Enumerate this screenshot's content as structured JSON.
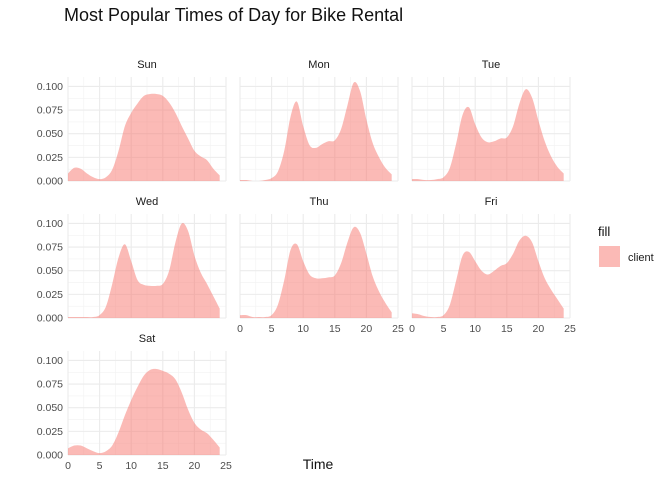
{
  "chart_data": {
    "type": "area",
    "title": "Most Popular Times of Day for Bike Rental",
    "xlabel": "Time",
    "ylabel": "",
    "xlim": [
      0,
      25
    ],
    "ylim": [
      0,
      0.11
    ],
    "x_ticks": [
      "0",
      "5",
      "10",
      "15",
      "20",
      "25"
    ],
    "y_ticks": [
      "0.000",
      "0.025",
      "0.050",
      "0.075",
      "0.100"
    ],
    "grid": true,
    "legend": {
      "title": "fill",
      "position": "right",
      "entries": [
        "client"
      ]
    },
    "fill_color": "#F8766D",
    "fill_opacity": 0.5,
    "panels": [
      {
        "label": "Sun",
        "x": [
          0,
          1,
          2,
          3,
          4,
          5,
          6,
          7,
          8,
          9,
          10,
          11,
          12,
          13,
          14,
          15,
          16,
          17,
          18,
          19,
          20,
          21,
          22,
          23,
          24
        ],
        "values": [
          0.008,
          0.014,
          0.013,
          0.008,
          0.004,
          0.002,
          0.004,
          0.012,
          0.032,
          0.058,
          0.072,
          0.082,
          0.09,
          0.092,
          0.092,
          0.09,
          0.083,
          0.072,
          0.058,
          0.045,
          0.032,
          0.026,
          0.022,
          0.013,
          0.006
        ]
      },
      {
        "label": "Mon",
        "x": [
          0,
          1,
          2,
          3,
          4,
          5,
          6,
          7,
          8,
          9,
          10,
          11,
          12,
          13,
          14,
          15,
          16,
          17,
          18,
          19,
          20,
          21,
          22,
          23,
          24
        ],
        "values": [
          0.001,
          0.001,
          0.0,
          0.0,
          0.001,
          0.003,
          0.01,
          0.032,
          0.068,
          0.084,
          0.058,
          0.038,
          0.035,
          0.039,
          0.042,
          0.043,
          0.055,
          0.08,
          0.104,
          0.095,
          0.065,
          0.04,
          0.025,
          0.014,
          0.007
        ]
      },
      {
        "label": "Tue",
        "x": [
          0,
          1,
          2,
          3,
          4,
          5,
          6,
          7,
          8,
          9,
          10,
          11,
          12,
          13,
          14,
          15,
          16,
          17,
          18,
          19,
          20,
          21,
          22,
          23,
          24
        ],
        "values": [
          0.002,
          0.002,
          0.001,
          0.001,
          0.002,
          0.004,
          0.014,
          0.04,
          0.07,
          0.078,
          0.06,
          0.046,
          0.041,
          0.042,
          0.045,
          0.046,
          0.058,
          0.082,
          0.097,
          0.088,
          0.064,
          0.042,
          0.026,
          0.015,
          0.008
        ]
      },
      {
        "label": "Wed",
        "x": [
          0,
          1,
          2,
          3,
          4,
          5,
          6,
          7,
          8,
          9,
          10,
          11,
          12,
          13,
          14,
          15,
          16,
          17,
          18,
          19,
          20,
          21,
          22,
          23,
          24
        ],
        "values": [
          0.001,
          0.001,
          0.001,
          0.001,
          0.001,
          0.003,
          0.012,
          0.036,
          0.064,
          0.078,
          0.06,
          0.04,
          0.035,
          0.034,
          0.034,
          0.036,
          0.05,
          0.08,
          0.1,
          0.092,
          0.066,
          0.048,
          0.036,
          0.023,
          0.01
        ]
      },
      {
        "label": "Thu",
        "x": [
          0,
          1,
          2,
          3,
          4,
          5,
          6,
          7,
          8,
          9,
          10,
          11,
          12,
          13,
          14,
          15,
          16,
          17,
          18,
          19,
          20,
          21,
          22,
          23,
          24
        ],
        "values": [
          0.003,
          0.003,
          0.001,
          0.001,
          0.001,
          0.003,
          0.014,
          0.04,
          0.072,
          0.078,
          0.06,
          0.046,
          0.042,
          0.042,
          0.043,
          0.045,
          0.058,
          0.08,
          0.096,
          0.09,
          0.068,
          0.044,
          0.028,
          0.016,
          0.006
        ]
      },
      {
        "label": "Fri",
        "x": [
          0,
          1,
          2,
          3,
          4,
          5,
          6,
          7,
          8,
          9,
          10,
          11,
          12,
          13,
          14,
          15,
          16,
          17,
          18,
          19,
          20,
          21,
          22,
          23,
          24
        ],
        "values": [
          0.005,
          0.004,
          0.002,
          0.001,
          0.001,
          0.003,
          0.014,
          0.04,
          0.066,
          0.07,
          0.06,
          0.05,
          0.046,
          0.05,
          0.055,
          0.058,
          0.068,
          0.082,
          0.087,
          0.08,
          0.06,
          0.042,
          0.03,
          0.02,
          0.01
        ]
      },
      {
        "label": "Sat",
        "x": [
          0,
          1,
          2,
          3,
          4,
          5,
          6,
          7,
          8,
          9,
          10,
          11,
          12,
          13,
          14,
          15,
          16,
          17,
          18,
          19,
          20,
          21,
          22,
          23,
          24
        ],
        "values": [
          0.007,
          0.01,
          0.01,
          0.007,
          0.004,
          0.002,
          0.004,
          0.01,
          0.024,
          0.042,
          0.058,
          0.072,
          0.084,
          0.09,
          0.091,
          0.089,
          0.086,
          0.08,
          0.066,
          0.048,
          0.034,
          0.027,
          0.023,
          0.016,
          0.008
        ]
      }
    ]
  }
}
